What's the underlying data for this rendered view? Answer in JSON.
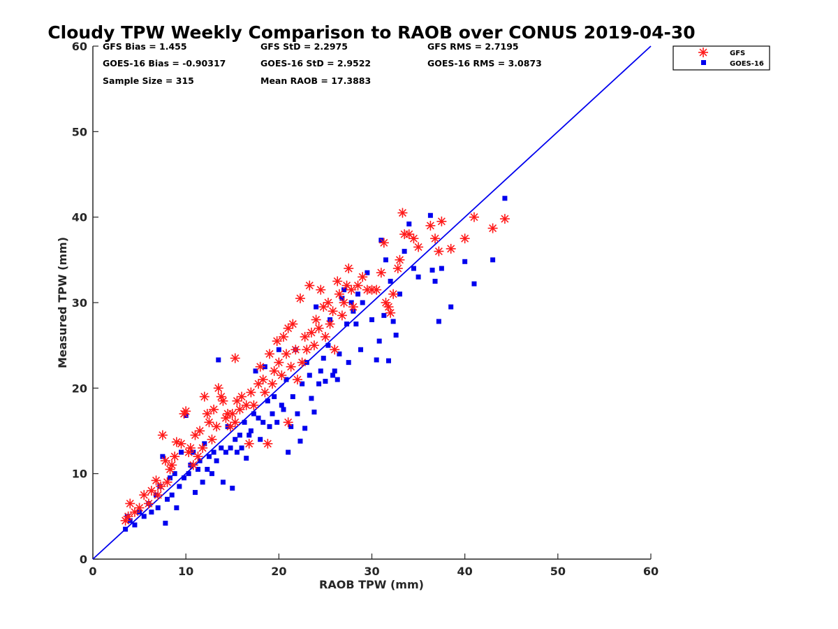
{
  "chart_data": {
    "type": "scatter",
    "title": "Cloudy TPW Weekly Comparison to RAOB over CONUS 2019-04-30",
    "xlabel": "RAOB TPW (mm)",
    "ylabel": "Measured TPW (mm)",
    "xlim": [
      0,
      60
    ],
    "ylim": [
      0,
      60
    ],
    "xticks": [
      0,
      10,
      20,
      30,
      40,
      50,
      60
    ],
    "yticks": [
      0,
      10,
      20,
      30,
      40,
      50,
      60
    ],
    "grid": false,
    "legend_position": "top-right, outside",
    "reference_line": {
      "from": [
        0,
        0
      ],
      "to": [
        60,
        60
      ],
      "color": "#0000ee"
    },
    "stats": [
      "GFS Bias = 1.455",
      "GFS StD = 2.2975",
      "GFS RMS = 2.7195",
      "GOES-16 Bias = -0.90317",
      "GOES-16 StD = 2.9522",
      "GOES-16 RMS = 3.0873",
      "Sample Size = 315",
      "Mean RAOB = 17.3883"
    ],
    "series": [
      {
        "name": "GFS",
        "marker": "asterisk",
        "color": "#ff1a1a",
        "points": [
          [
            3.5,
            4.5
          ],
          [
            3.8,
            5.0
          ],
          [
            4.0,
            6.5
          ],
          [
            4.5,
            5.5
          ],
          [
            5.0,
            6.0
          ],
          [
            5.5,
            7.5
          ],
          [
            6.0,
            6.5
          ],
          [
            6.3,
            8.0
          ],
          [
            6.8,
            9.2
          ],
          [
            7.0,
            7.5
          ],
          [
            7.3,
            8.5
          ],
          [
            7.5,
            14.5
          ],
          [
            7.8,
            11.5
          ],
          [
            8.0,
            9.0
          ],
          [
            8.3,
            10.5
          ],
          [
            8.5,
            11.0
          ],
          [
            8.8,
            12.0
          ],
          [
            9.0,
            13.7
          ],
          [
            9.5,
            13.5
          ],
          [
            9.8,
            17.0
          ],
          [
            10.0,
            17.3
          ],
          [
            10.3,
            12.5
          ],
          [
            10.5,
            13.0
          ],
          [
            10.8,
            11.0
          ],
          [
            11.0,
            14.5
          ],
          [
            11.3,
            12.0
          ],
          [
            11.5,
            15.0
          ],
          [
            11.8,
            13.0
          ],
          [
            12.0,
            19.0
          ],
          [
            12.3,
            17.0
          ],
          [
            12.5,
            16.0
          ],
          [
            12.8,
            14.0
          ],
          [
            13.0,
            17.5
          ],
          [
            13.3,
            15.5
          ],
          [
            13.5,
            20.0
          ],
          [
            13.8,
            19.0
          ],
          [
            14.0,
            18.5
          ],
          [
            14.3,
            16.5
          ],
          [
            14.5,
            17.0
          ],
          [
            14.8,
            15.5
          ],
          [
            15.0,
            17.0
          ],
          [
            15.3,
            16.0
          ],
          [
            15.5,
            18.5
          ],
          [
            15.3,
            23.5
          ],
          [
            15.8,
            17.5
          ],
          [
            16.0,
            19.0
          ],
          [
            16.5,
            18.0
          ],
          [
            16.8,
            13.5
          ],
          [
            17.0,
            19.5
          ],
          [
            17.3,
            18.0
          ],
          [
            17.8,
            20.5
          ],
          [
            18.0,
            22.5
          ],
          [
            18.3,
            21.0
          ],
          [
            18.5,
            19.5
          ],
          [
            18.8,
            13.5
          ],
          [
            19.0,
            24.0
          ],
          [
            19.3,
            20.5
          ],
          [
            19.5,
            22.0
          ],
          [
            19.8,
            25.5
          ],
          [
            20.0,
            23.0
          ],
          [
            20.3,
            21.5
          ],
          [
            20.5,
            26.0
          ],
          [
            20.8,
            24.0
          ],
          [
            21.0,
            16.0
          ],
          [
            21.0,
            27.0
          ],
          [
            21.3,
            22.5
          ],
          [
            21.5,
            27.5
          ],
          [
            21.8,
            24.5
          ],
          [
            22.0,
            21.0
          ],
          [
            22.3,
            30.5
          ],
          [
            22.5,
            23.0
          ],
          [
            22.8,
            26.0
          ],
          [
            23.0,
            24.5
          ],
          [
            23.3,
            32.0
          ],
          [
            23.5,
            26.5
          ],
          [
            23.8,
            25.0
          ],
          [
            24.0,
            28.0
          ],
          [
            24.3,
            27.0
          ],
          [
            24.5,
            31.5
          ],
          [
            24.8,
            29.5
          ],
          [
            25.0,
            26.0
          ],
          [
            25.3,
            30.0
          ],
          [
            25.5,
            27.5
          ],
          [
            25.8,
            29.0
          ],
          [
            26.0,
            24.5
          ],
          [
            26.3,
            32.5
          ],
          [
            26.5,
            31.0
          ],
          [
            26.8,
            28.5
          ],
          [
            27.0,
            30.0
          ],
          [
            27.3,
            32.0
          ],
          [
            27.5,
            34.0
          ],
          [
            27.8,
            31.5
          ],
          [
            28.0,
            29.5
          ],
          [
            28.5,
            32.0
          ],
          [
            29.0,
            33.0
          ],
          [
            29.5,
            31.5
          ],
          [
            30.0,
            31.5
          ],
          [
            30.5,
            31.5
          ],
          [
            31.0,
            33.5
          ],
          [
            31.3,
            37.0
          ],
          [
            31.5,
            30.0
          ],
          [
            31.8,
            29.5
          ],
          [
            32.0,
            28.8
          ],
          [
            32.3,
            31.0
          ],
          [
            32.8,
            34.0
          ],
          [
            33.0,
            35.0
          ],
          [
            33.3,
            40.5
          ],
          [
            33.5,
            38.0
          ],
          [
            34.0,
            38.0
          ],
          [
            34.5,
            37.5
          ],
          [
            35.0,
            36.5
          ],
          [
            36.3,
            39.0
          ],
          [
            36.8,
            37.5
          ],
          [
            37.2,
            36.0
          ],
          [
            37.5,
            39.5
          ],
          [
            38.5,
            36.3
          ],
          [
            40.0,
            37.5
          ],
          [
            41.0,
            40.0
          ],
          [
            43.0,
            38.7
          ],
          [
            44.3,
            39.8
          ]
        ]
      },
      {
        "name": "GOES-16",
        "marker": "square",
        "color": "#0000ee",
        "points": [
          [
            3.5,
            3.5
          ],
          [
            3.7,
            5.0
          ],
          [
            4.0,
            4.5
          ],
          [
            4.5,
            4.0
          ],
          [
            5.0,
            5.5
          ],
          [
            5.5,
            5.0
          ],
          [
            6.0,
            6.5
          ],
          [
            6.3,
            5.5
          ],
          [
            6.8,
            7.5
          ],
          [
            7.0,
            6.0
          ],
          [
            7.2,
            8.5
          ],
          [
            7.5,
            12.0
          ],
          [
            7.8,
            4.2
          ],
          [
            8.0,
            7.0
          ],
          [
            8.3,
            9.5
          ],
          [
            8.5,
            7.5
          ],
          [
            8.8,
            10.0
          ],
          [
            9.0,
            6.0
          ],
          [
            9.3,
            8.5
          ],
          [
            9.5,
            12.5
          ],
          [
            9.8,
            9.5
          ],
          [
            10.0,
            16.8
          ],
          [
            10.3,
            10.0
          ],
          [
            10.5,
            11.0
          ],
          [
            10.8,
            12.5
          ],
          [
            11.0,
            7.8
          ],
          [
            11.3,
            10.5
          ],
          [
            11.5,
            11.5
          ],
          [
            11.8,
            9.0
          ],
          [
            12.0,
            13.5
          ],
          [
            12.3,
            10.5
          ],
          [
            12.5,
            12.0
          ],
          [
            12.8,
            10.0
          ],
          [
            13.0,
            12.5
          ],
          [
            13.3,
            11.5
          ],
          [
            13.5,
            23.3
          ],
          [
            13.8,
            13.0
          ],
          [
            14.0,
            9.0
          ],
          [
            14.3,
            12.5
          ],
          [
            14.5,
            15.5
          ],
          [
            14.8,
            13.0
          ],
          [
            15.0,
            8.3
          ],
          [
            15.3,
            14.0
          ],
          [
            15.5,
            12.5
          ],
          [
            15.8,
            14.5
          ],
          [
            16.0,
            13.0
          ],
          [
            16.3,
            16.0
          ],
          [
            16.5,
            11.8
          ],
          [
            16.8,
            14.5
          ],
          [
            17.0,
            15.0
          ],
          [
            17.3,
            17.0
          ],
          [
            17.5,
            22.0
          ],
          [
            17.8,
            16.5
          ],
          [
            18.0,
            14.0
          ],
          [
            18.3,
            16.0
          ],
          [
            18.5,
            22.5
          ],
          [
            18.8,
            18.5
          ],
          [
            19.0,
            15.5
          ],
          [
            19.3,
            17.0
          ],
          [
            19.5,
            19.0
          ],
          [
            19.8,
            16.0
          ],
          [
            20.0,
            24.5
          ],
          [
            20.3,
            18.0
          ],
          [
            20.5,
            17.5
          ],
          [
            20.8,
            21.0
          ],
          [
            21.0,
            12.5
          ],
          [
            21.3,
            15.5
          ],
          [
            21.5,
            19.0
          ],
          [
            21.8,
            24.5
          ],
          [
            22.0,
            17.0
          ],
          [
            22.3,
            13.8
          ],
          [
            22.5,
            20.5
          ],
          [
            22.8,
            15.3
          ],
          [
            23.0,
            23.0
          ],
          [
            23.3,
            21.5
          ],
          [
            23.5,
            18.8
          ],
          [
            23.8,
            17.2
          ],
          [
            24.0,
            29.5
          ],
          [
            24.3,
            20.5
          ],
          [
            24.5,
            22.0
          ],
          [
            24.8,
            23.5
          ],
          [
            25.0,
            20.8
          ],
          [
            25.3,
            25.0
          ],
          [
            25.5,
            28.0
          ],
          [
            25.8,
            21.5
          ],
          [
            26.0,
            22.0
          ],
          [
            26.3,
            21.0
          ],
          [
            26.5,
            24.0
          ],
          [
            26.8,
            30.5
          ],
          [
            27.0,
            31.5
          ],
          [
            27.3,
            27.5
          ],
          [
            27.5,
            23.0
          ],
          [
            27.8,
            30.0
          ],
          [
            28.0,
            29.0
          ],
          [
            28.3,
            27.5
          ],
          [
            28.5,
            31.0
          ],
          [
            28.8,
            24.5
          ],
          [
            29.0,
            30.0
          ],
          [
            29.5,
            33.5
          ],
          [
            30.0,
            28.0
          ],
          [
            30.5,
            23.3
          ],
          [
            30.8,
            25.5
          ],
          [
            31.0,
            37.3
          ],
          [
            31.3,
            28.5
          ],
          [
            31.5,
            35.0
          ],
          [
            31.8,
            23.2
          ],
          [
            32.0,
            32.5
          ],
          [
            32.3,
            27.8
          ],
          [
            32.6,
            26.2
          ],
          [
            33.0,
            31.0
          ],
          [
            33.5,
            36.0
          ],
          [
            34.0,
            39.2
          ],
          [
            34.5,
            34.0
          ],
          [
            35.0,
            33.0
          ],
          [
            36.3,
            40.2
          ],
          [
            36.5,
            33.8
          ],
          [
            36.8,
            32.5
          ],
          [
            37.2,
            27.8
          ],
          [
            37.5,
            34.0
          ],
          [
            38.5,
            29.5
          ],
          [
            40.0,
            34.8
          ],
          [
            41.0,
            32.2
          ],
          [
            43.0,
            35.0
          ],
          [
            44.3,
            42.2
          ]
        ]
      }
    ]
  }
}
